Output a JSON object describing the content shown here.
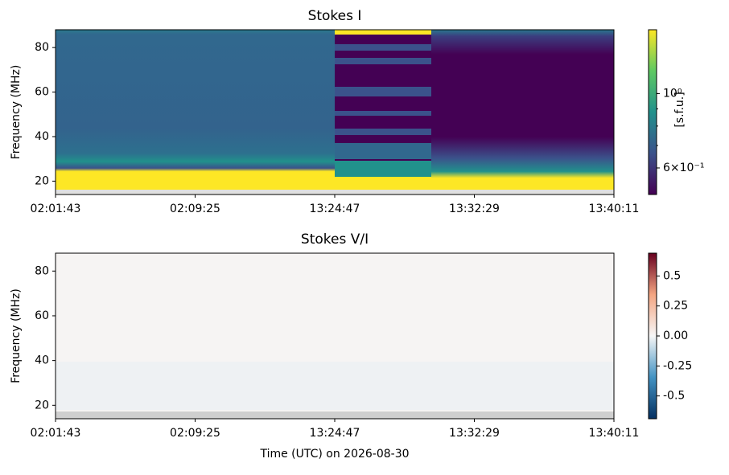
{
  "chart_data": [
    {
      "type": "heatmap",
      "title": "Stokes I",
      "ylabel": "Frequency (MHz)",
      "categories": [
        "02:01:43",
        "02:09:25",
        "13:24:47",
        "13:32:29",
        "13:40:11"
      ],
      "ylim": [
        14,
        88
      ],
      "yticks": [
        20,
        40,
        60,
        80
      ],
      "colorbar": {
        "label": "[s.f.u.]",
        "colormap": "viridis",
        "log": true,
        "lim": [
          0.5,
          1.55
        ],
        "ticks": [
          {
            "value": 1,
            "label": "10⁰"
          },
          {
            "value": 0.6,
            "label": "6×10⁻¹"
          }
        ]
      }
    },
    {
      "type": "heatmap",
      "title": "Stokes V/I",
      "ylabel": "Frequency (MHz)",
      "xlabel": "Time (UTC) on 2026-08-30",
      "categories": [
        "02:01:43",
        "02:09:25",
        "13:24:47",
        "13:32:29",
        "13:40:11"
      ],
      "ylim": [
        14,
        88
      ],
      "yticks": [
        20,
        40,
        60,
        80
      ],
      "colorbar": {
        "colormap": "RdBu_r",
        "log": false,
        "lim": [
          -0.69,
          0.69
        ],
        "ticks": [
          0.5,
          0.25,
          {
            "value": 0,
            "label": "0.00"
          },
          -0.25,
          -0.5
        ]
      }
    }
  ]
}
